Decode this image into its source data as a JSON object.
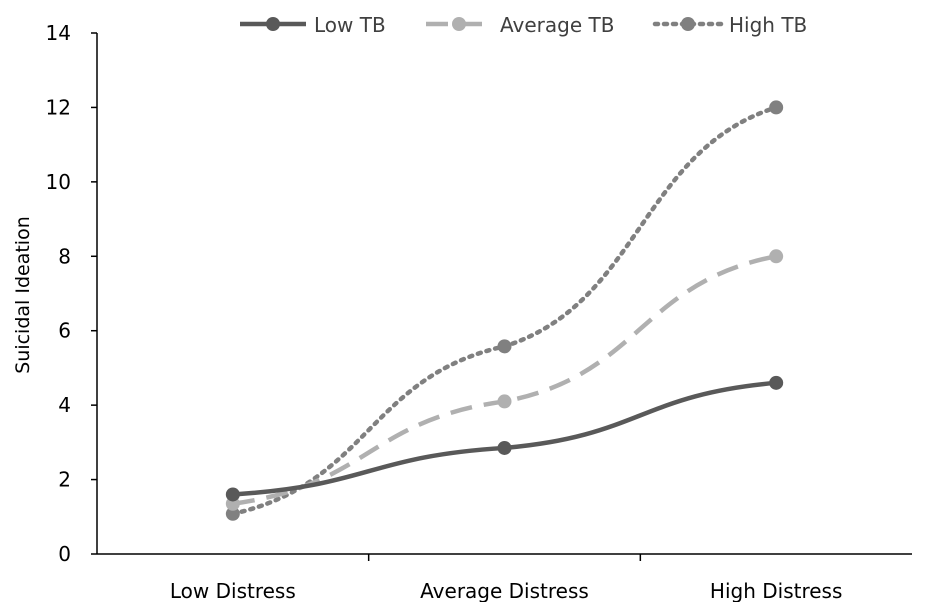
{
  "chart_data": {
    "type": "line",
    "categories": [
      "Low Distress",
      "Average Distress",
      "High Distress"
    ],
    "ylabel": "Suicidal Ideation",
    "xlabel": "",
    "ylim": [
      0,
      14
    ],
    "yticks": [
      "0",
      "2",
      "4",
      "6",
      "8",
      "10",
      "12",
      "14"
    ],
    "grid": false,
    "legend_position": "top",
    "series": [
      {
        "name": "Low TB",
        "values": [
          1.6,
          2.85,
          4.6
        ],
        "color": "#595959",
        "style": "solid"
      },
      {
        "name": "Average TB",
        "values": [
          1.35,
          4.1,
          8.0
        ],
        "color": "#b0b0b0",
        "style": "dashed"
      },
      {
        "name": "High TB",
        "values": [
          1.08,
          5.58,
          12.0
        ],
        "color": "#808080",
        "style": "dotted"
      }
    ]
  }
}
